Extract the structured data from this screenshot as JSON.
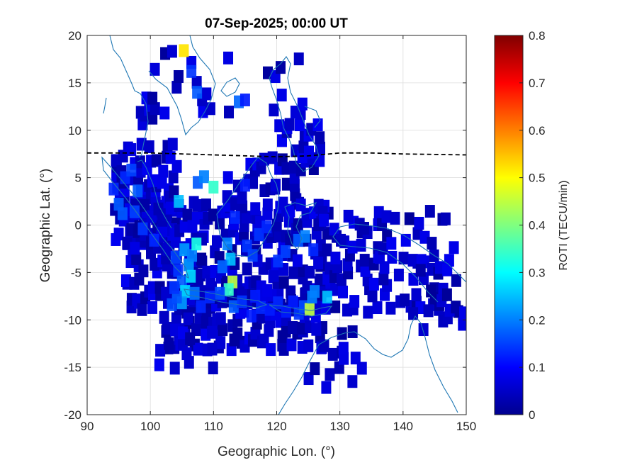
{
  "chart_data": {
    "type": "heatmap",
    "title": "07-Sep-2025; 00:00 UT",
    "xlabel": "Geographic Lon. (°)",
    "ylabel": "Geographic Lat. (°)",
    "xlim": [
      90,
      150
    ],
    "ylim": [
      -20,
      20
    ],
    "xticks": [
      "90",
      "100",
      "110",
      "120",
      "130",
      "140",
      "150"
    ],
    "yticks": [
      "20",
      "15",
      "10",
      "5",
      "0",
      "-5",
      "-10",
      "-15",
      "-20"
    ],
    "grid": true,
    "colorbar": {
      "label": "ROTI (TECU/min)",
      "range": [
        0,
        0.8
      ],
      "ticks": [
        "0.8",
        "0.7",
        "0.6",
        "0.5",
        "0.4",
        "0.3",
        "0.2",
        "0.1",
        "0"
      ],
      "colormap": "jet"
    },
    "magnetic_equator": {
      "style": "dashed",
      "color": "#000000",
      "points": [
        [
          90,
          7.6
        ],
        [
          100,
          7.6
        ],
        [
          110,
          7.4
        ],
        [
          120,
          7.2
        ],
        [
          125,
          7.3
        ],
        [
          130,
          7.6
        ],
        [
          135,
          7.6
        ],
        [
          140,
          7.5
        ],
        [
          150,
          7.4
        ]
      ]
    },
    "coastline_color": "#1f77b4",
    "cells": [
      [
        105.3,
        18.4,
        0.52
      ],
      [
        106.5,
        16.2,
        0.14
      ],
      [
        107.4,
        14.0,
        0.17
      ],
      [
        114.0,
        13.0,
        0.18
      ],
      [
        115.0,
        13.2,
        0.12
      ],
      [
        94.2,
        3.8,
        0.13
      ],
      [
        95.0,
        2.2,
        0.17
      ],
      [
        96.0,
        5.0,
        0.13
      ],
      [
        97.0,
        5.8,
        0.15
      ],
      [
        98.0,
        3.6,
        0.17
      ],
      [
        95.6,
        1.2,
        0.17
      ],
      [
        97.5,
        1.4,
        0.15
      ],
      [
        98.8,
        -0.4,
        0.14
      ],
      [
        100.6,
        -1.6,
        0.13
      ],
      [
        104.0,
        -3.4,
        0.15
      ],
      [
        104.4,
        -4.8,
        0.14
      ],
      [
        105.4,
        -2.6,
        0.22
      ],
      [
        105.0,
        -6.0,
        0.17
      ],
      [
        105.5,
        -7.0,
        0.27
      ],
      [
        106.1,
        -4.2,
        0.22
      ],
      [
        106.6,
        -3.2,
        0.2
      ],
      [
        107.3,
        -2.0,
        0.32
      ],
      [
        106.4,
        -5.4,
        0.27
      ],
      [
        107.0,
        -7.2,
        0.19
      ],
      [
        105.0,
        -8.2,
        0.22
      ],
      [
        104.2,
        -7.6,
        0.17
      ],
      [
        103.4,
        -8.4,
        0.16
      ],
      [
        103.8,
        -6.6,
        0.14
      ],
      [
        107.5,
        4.5,
        0.17
      ],
      [
        108.5,
        5.1,
        0.2
      ],
      [
        110.0,
        4.0,
        0.34
      ],
      [
        104.5,
        2.5,
        0.25
      ],
      [
        112.2,
        -2.0,
        0.2
      ],
      [
        112.7,
        -3.6,
        0.25
      ],
      [
        111.4,
        -4.4,
        0.18
      ],
      [
        113.0,
        -6.0,
        0.45
      ],
      [
        112.4,
        -6.8,
        0.34
      ],
      [
        113.2,
        -8.6,
        0.17
      ],
      [
        114.5,
        -8.1,
        0.14
      ],
      [
        111.0,
        -7.2,
        0.16
      ],
      [
        109.4,
        -7.6,
        0.13
      ],
      [
        108.0,
        -8.6,
        0.13
      ],
      [
        116.0,
        -9.6,
        0.12
      ],
      [
        117.5,
        -8.7,
        0.13
      ],
      [
        116.6,
        -7.5,
        0.12
      ],
      [
        118.9,
        -8.9,
        0.12
      ],
      [
        120.2,
        -8.2,
        0.13
      ],
      [
        121.5,
        -9.1,
        0.12
      ],
      [
        122.6,
        -8.1,
        0.12
      ],
      [
        123.5,
        -9.3,
        0.14
      ],
      [
        124.3,
        -8.6,
        0.16
      ],
      [
        125.2,
        -8.9,
        0.45
      ],
      [
        125.6,
        -7.6,
        0.2
      ],
      [
        123.4,
        -1.6,
        0.17
      ],
      [
        124.5,
        -1.2,
        0.2
      ],
      [
        125.8,
        -2.6,
        0.13
      ],
      [
        115.3,
        -2.2,
        0.14
      ],
      [
        116.2,
        -3.2,
        0.15
      ],
      [
        117.2,
        -1.0,
        0.14
      ],
      [
        118.4,
        -0.2,
        0.13
      ],
      [
        120.2,
        -3.8,
        0.14
      ],
      [
        121.4,
        -2.8,
        0.15
      ],
      [
        126.0,
        -7.0,
        0.2
      ],
      [
        128.0,
        -7.6,
        0.25
      ],
      [
        115.0,
        4.2,
        0.12
      ],
      [
        113.4,
        0.8,
        0.13
      ]
    ]
  }
}
